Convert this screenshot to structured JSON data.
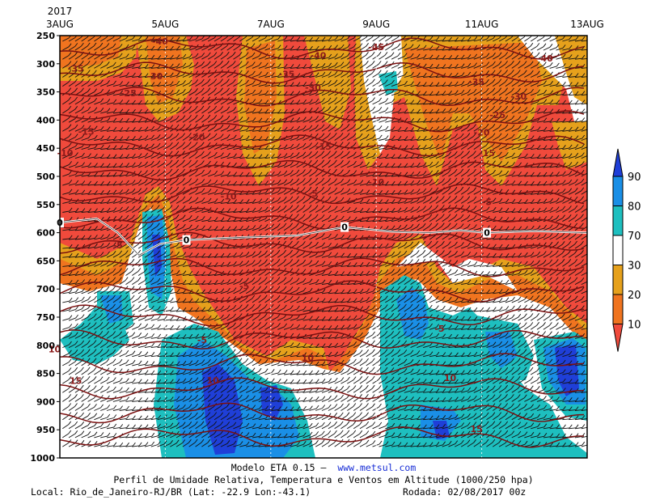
{
  "chart_data": {
    "type": "heatmap",
    "title": "Perfil de Umidade Relativa, Temperatura e Ventos em Altitude (1000/250 hpa)",
    "x_tick_labels": [
      "3AUG",
      "5AUG",
      "7AUG",
      "9AUG",
      "11AUG",
      "13AUG"
    ],
    "x_year_label": "2017",
    "x_range_days": [
      3,
      13
    ],
    "y_tick_labels": [
      "250",
      "300",
      "350",
      "400",
      "450",
      "500",
      "550",
      "600",
      "650",
      "700",
      "750",
      "800",
      "850",
      "900",
      "950",
      "1000"
    ],
    "y_range_hpa": [
      250,
      1000
    ],
    "y_inverted": true,
    "colorbar": {
      "labels": [
        "90",
        "80",
        "70",
        "30",
        "20",
        "10"
      ],
      "colors": [
        "#1f3fd8",
        "#1a8fe6",
        "#1ebfbf",
        "#ffffff",
        "#e6a11c",
        "#f0741f",
        "#f04a3c"
      ]
    },
    "temperature_contour_labels": [
      {
        "label": "-45",
        "day": 9.0,
        "p": 270
      },
      {
        "label": "-40",
        "day": 4.9,
        "p": 260
      },
      {
        "label": "-40",
        "day": 7.9,
        "p": 285
      },
      {
        "label": "-40",
        "day": 12.2,
        "p": 290
      },
      {
        "label": "-35",
        "day": 3.3,
        "p": 308
      },
      {
        "label": "-35",
        "day": 7.3,
        "p": 318
      },
      {
        "label": "-35",
        "day": 10.9,
        "p": 332
      },
      {
        "label": "-30",
        "day": 4.8,
        "p": 322
      },
      {
        "label": "-30",
        "day": 7.8,
        "p": 342
      },
      {
        "label": "-30",
        "day": 11.7,
        "p": 358
      },
      {
        "label": "-25",
        "day": 4.3,
        "p": 352
      },
      {
        "label": "-25",
        "day": 11.3,
        "p": 391
      },
      {
        "label": "-20",
        "day": 5.6,
        "p": 430
      },
      {
        "label": "-20",
        "day": 11.0,
        "p": 422
      },
      {
        "label": "-15",
        "day": 3.5,
        "p": 420
      },
      {
        "label": "-15",
        "day": 8.0,
        "p": 447
      },
      {
        "label": "-15",
        "day": 11.1,
        "p": 458
      },
      {
        "label": "-10",
        "day": 3.1,
        "p": 458
      },
      {
        "label": "-10",
        "day": 6.2,
        "p": 535
      },
      {
        "label": "-10",
        "day": 9.0,
        "p": 510
      },
      {
        "label": "-5",
        "day": 7.8,
        "p": 530
      },
      {
        "label": "-5",
        "day": 11.1,
        "p": 545
      },
      {
        "label": "-5",
        "day": 6.5,
        "p": 695
      },
      {
        "label": "-5",
        "day": 5.7,
        "p": 790
      },
      {
        "label": "-5",
        "day": 10.2,
        "p": 770
      },
      {
        "label": "-5",
        "day": 4.1,
        "p": 622
      },
      {
        "label": "10",
        "day": 2.9,
        "p": 807
      },
      {
        "label": "10",
        "day": 7.7,
        "p": 822
      },
      {
        "label": "10",
        "day": 5.9,
        "p": 862
      },
      {
        "label": "10",
        "day": 10.4,
        "p": 858
      },
      {
        "label": "15",
        "day": 3.3,
        "p": 863
      },
      {
        "label": "15",
        "day": 10.9,
        "p": 948
      }
    ],
    "freezing_line_labels": [
      {
        "label": "0",
        "day": 3.0,
        "p": 582
      },
      {
        "label": "0",
        "day": 5.4,
        "p": 613
      },
      {
        "label": "0",
        "day": 8.4,
        "p": 590
      },
      {
        "label": "0",
        "day": 11.1,
        "p": 600
      }
    ]
  },
  "caption": {
    "model_prefix": "Modelo ETA 0.15 –",
    "website": "www.metsul.com",
    "title": "Perfil de Umidade Relativa, Temperatura e Ventos em Altitude (1000/250 hpa)",
    "location": "Local: Rio_de_Janeiro-RJ/BR (Lat: -22.9  Lon:-43.1)",
    "run": "Rodada: 02/08/2017 00z"
  }
}
